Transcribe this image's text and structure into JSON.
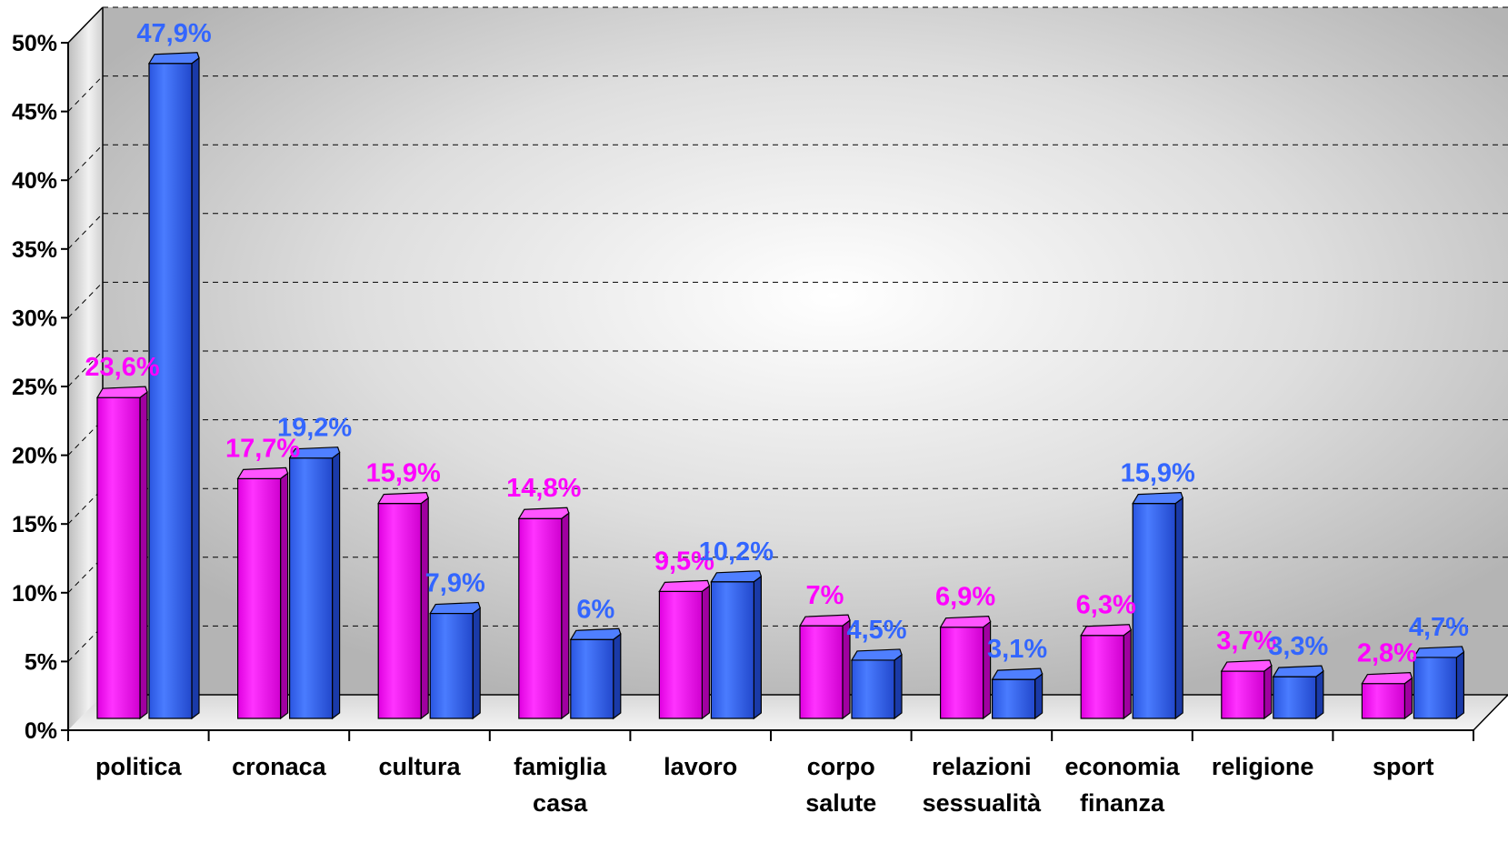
{
  "chart_data": {
    "type": "bar",
    "categories": [
      [
        "politica"
      ],
      [
        "cronaca"
      ],
      [
        "cultura"
      ],
      [
        "famiglia",
        "casa"
      ],
      [
        "lavoro"
      ],
      [
        "corpo",
        "salute"
      ],
      [
        "relazioni",
        "sessualità"
      ],
      [
        "economia",
        "finanza"
      ],
      [
        "religione"
      ],
      [
        "sport"
      ]
    ],
    "series": [
      {
        "color": "#ff00ff",
        "values": [
          23.6,
          17.7,
          15.9,
          14.8,
          9.5,
          7,
          6.9,
          6.3,
          3.7,
          2.8
        ],
        "labels": [
          "23,6%",
          "17,7%",
          "15,9%",
          "14,8%",
          "9,5%",
          "7%",
          "6,9%",
          "6,3%",
          "3,7%",
          "2,8%"
        ]
      },
      {
        "color": "#3366ff",
        "values": [
          47.9,
          19.2,
          7.9,
          6,
          10.2,
          4.5,
          3.1,
          15.9,
          3.3,
          4.7
        ],
        "labels": [
          "47,9%",
          "19,2%",
          "7,9%",
          "6%",
          "10,2%",
          "4,5%",
          "3,1%",
          "15,9%",
          "3,3%",
          "4,7%"
        ]
      }
    ],
    "yticks": [
      "0%",
      "5%",
      "10%",
      "15%",
      "20%",
      "25%",
      "30%",
      "35%",
      "40%",
      "45%",
      "50%"
    ],
    "ylim": [
      0,
      50
    ],
    "grid": true
  }
}
